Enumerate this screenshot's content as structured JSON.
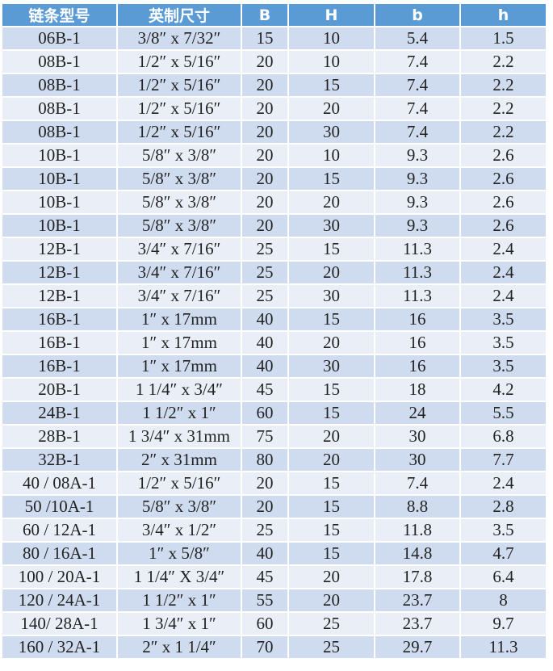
{
  "colors": {
    "header": "#5b9bd5",
    "row_dark": "#cfdcef",
    "row_light": "#e9eef7"
  },
  "table": {
    "headers": [
      "链条型号",
      "英制尺寸",
      "B",
      "H",
      "b",
      "h"
    ],
    "rows": [
      [
        "06B-1",
        "3/8″ x 7/32″",
        "15",
        "10",
        "5.4",
        "1.5"
      ],
      [
        "08B-1",
        "1/2″ x 5/16″",
        "20",
        "10",
        "7.4",
        "2.2"
      ],
      [
        "08B-1",
        "1/2″ x 5/16″",
        "20",
        "15",
        "7.4",
        "2.2"
      ],
      [
        "08B-1",
        "1/2″ x 5/16″",
        "20",
        "20",
        "7.4",
        "2.2"
      ],
      [
        "08B-1",
        "1/2″ x 5/16″",
        "20",
        "30",
        "7.4",
        "2.2"
      ],
      [
        "10B-1",
        "5/8″ x 3/8″",
        "20",
        "10",
        "9.3",
        "2.6"
      ],
      [
        "10B-1",
        "5/8″ x 3/8″",
        "20",
        "15",
        "9.3",
        "2.6"
      ],
      [
        "10B-1",
        "5/8″ x 3/8″",
        "20",
        "20",
        "9.3",
        "2.6"
      ],
      [
        "10B-1",
        "5/8″ x 3/8″",
        "20",
        "30",
        "9.3",
        "2.6"
      ],
      [
        "12B-1",
        "3/4″ x 7/16″",
        "25",
        "15",
        "11.3",
        "2.4"
      ],
      [
        "12B-1",
        "3/4″ x 7/16″",
        "25",
        "20",
        "11.3",
        "2.4"
      ],
      [
        "12B-1",
        "3/4″ x 7/16″",
        "25",
        "30",
        "11.3",
        "2.4"
      ],
      [
        "16B-1",
        "1″ x 17mm",
        "40",
        "15",
        "16",
        "3.5"
      ],
      [
        "16B-1",
        "1″ x 17mm",
        "40",
        "20",
        "16",
        "3.5"
      ],
      [
        "16B-1",
        "1″ x 17mm",
        "40",
        "30",
        "16",
        "3.5"
      ],
      [
        "20B-1",
        "1 1/4″ x 3/4″",
        "45",
        "15",
        "18",
        "4.2"
      ],
      [
        "24B-1",
        "1 1/2″ x 1″",
        "60",
        "15",
        "24",
        "5.5"
      ],
      [
        "28B-1",
        "1 3/4″ x 31mm",
        "75",
        "20",
        "30",
        "6.8"
      ],
      [
        "32B-1",
        "2″ x 31mm",
        "80",
        "20",
        "30",
        "7.7"
      ],
      [
        "40 / 08A-1",
        "1/2″ x 5/16″",
        "20",
        "15",
        "7.4",
        "2.4"
      ],
      [
        "50 /10A-1",
        "5/8″ x 3/8″",
        "20",
        "15",
        "8.8",
        "2.8"
      ],
      [
        "60 / 12A-1",
        "3/4″ x 1/2″",
        "25",
        "15",
        "11.8",
        "3.5"
      ],
      [
        "80 / 16A-1",
        "1″ x 5/8″",
        "40",
        "15",
        "14.8",
        "4.7"
      ],
      [
        "100 / 20A-1",
        "1 1/4″ X 3/4″",
        "45",
        "20",
        "17.8",
        "6.4"
      ],
      [
        "120 / 24A-1",
        "1 1/2″ x 1″",
        "55",
        "20",
        "23.7",
        "8"
      ],
      [
        "140/ 28A-1",
        "1 3/4″ x 1″",
        "60",
        "25",
        "23.7",
        "9.7"
      ],
      [
        "160 / 32A-1",
        "2″ x 1 1/4″",
        "70",
        "25",
        "29.7",
        "11.3"
      ]
    ]
  }
}
